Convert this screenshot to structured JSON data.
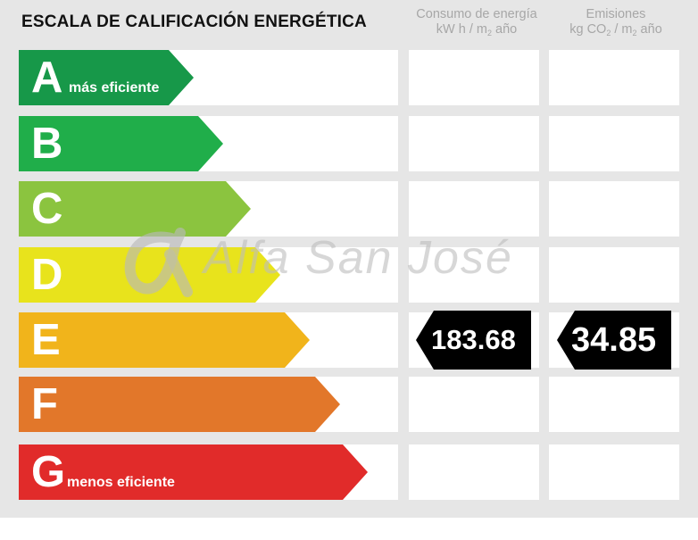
{
  "header": {
    "title": "ESCALA DE CALIFICACIÓN ENERGÉTICA",
    "energy_col": {
      "line1": "Consumo de energía",
      "line2_pre": "kW h / m",
      "line2_sub": "2",
      "line2_post": " año"
    },
    "emissions_col": {
      "line1": "Emisiones",
      "line2_pre": "kg CO",
      "line2_sub1": "2",
      "line2_mid": " / m",
      "line2_sub2": "2",
      "line2_post": " año"
    }
  },
  "scale": [
    {
      "letter": "A",
      "sublabel": "más eficiente",
      "color": "#179849"
    },
    {
      "letter": "B",
      "sublabel": "",
      "color": "#20ae4a"
    },
    {
      "letter": "C",
      "sublabel": "",
      "color": "#8bc43f"
    },
    {
      "letter": "D",
      "sublabel": "",
      "color": "#e8e31c"
    },
    {
      "letter": "E",
      "sublabel": "",
      "color": "#f1b41b"
    },
    {
      "letter": "F",
      "sublabel": "",
      "color": "#e2772a"
    },
    {
      "letter": "G",
      "sublabel": "menos eficiente",
      "color": "#e12b2a"
    }
  ],
  "rating": {
    "class": "E",
    "energy_value": "183.68",
    "emissions_value": "34.85",
    "badge_color": "#000000"
  },
  "watermark": {
    "text": "Alfa San José"
  }
}
